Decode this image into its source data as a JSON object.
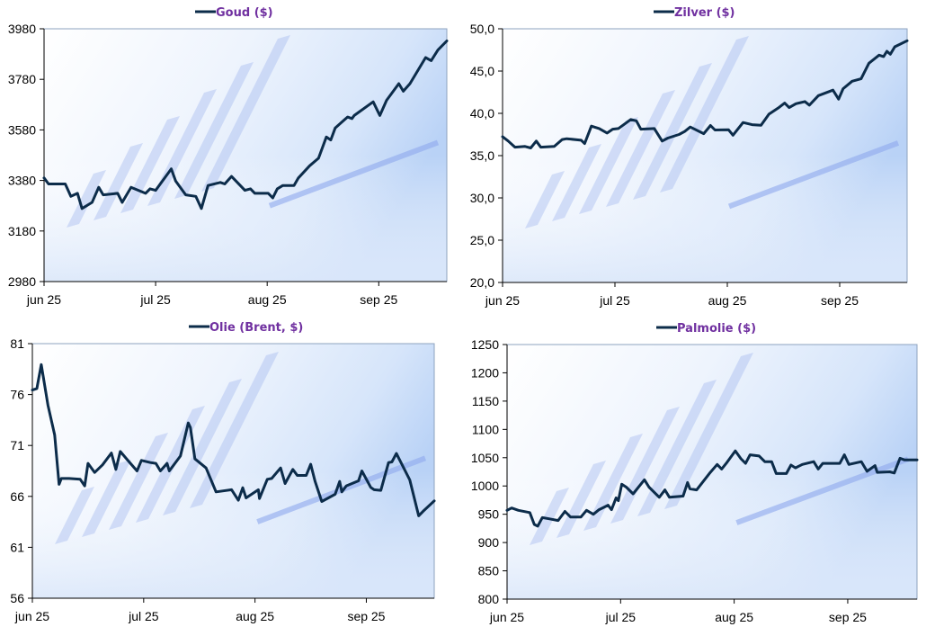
{
  "chart_data": [
    {
      "type": "line",
      "title": "Goud ($)",
      "x_unit": "months since 1 jun 2025",
      "xlim": [
        0,
        3.61
      ],
      "xticks": [
        {
          "v": 0,
          "label": "jun 25"
        },
        {
          "v": 1,
          "label": "jul 25"
        },
        {
          "v": 2,
          "label": "aug 25"
        },
        {
          "v": 3,
          "label": "sep 25"
        }
      ],
      "ylim": [
        2980,
        3980
      ],
      "yticks": [
        "2980",
        "3180",
        "3380",
        "3580",
        "3780",
        "3980"
      ],
      "series": [
        {
          "name": "Goud ($)",
          "color": "#0C2C4A",
          "x": [
            0,
            0.04,
            0.19,
            0.24,
            0.3,
            0.34,
            0.43,
            0.49,
            0.53,
            0.66,
            0.7,
            0.78,
            0.91,
            0.95,
            1.0,
            1.14,
            1.18,
            1.27,
            1.36,
            1.41,
            1.47,
            1.58,
            1.62,
            1.68,
            1.8,
            1.85,
            1.89,
            2.01,
            2.05,
            2.09,
            2.14,
            2.24,
            2.28,
            2.38,
            2.46,
            2.53,
            2.57,
            2.61,
            2.72,
            2.76,
            2.78,
            2.95,
            3.01,
            3.07,
            3.18,
            3.22,
            3.28,
            3.42,
            3.47,
            3.53,
            3.61
          ],
          "y": [
            3390,
            3366,
            3366,
            3317,
            3329,
            3269,
            3293,
            3353,
            3323,
            3329,
            3293,
            3353,
            3329,
            3347,
            3341,
            3426,
            3378,
            3323,
            3317,
            3269,
            3360,
            3372,
            3366,
            3396,
            3341,
            3347,
            3329,
            3329,
            3311,
            3347,
            3360,
            3360,
            3390,
            3438,
            3468,
            3552,
            3540,
            3588,
            3631,
            3625,
            3637,
            3691,
            3637,
            3697,
            3763,
            3733,
            3763,
            3866,
            3854,
            3896,
            3932
          ]
        }
      ]
    },
    {
      "type": "line",
      "title": "Zilver ($)",
      "x_unit": "months since 1 jun 2025",
      "xlim": [
        0,
        3.6
      ],
      "xticks": [
        {
          "v": 0,
          "label": "jun 25"
        },
        {
          "v": 1,
          "label": "jul 25"
        },
        {
          "v": 2,
          "label": "aug 25"
        },
        {
          "v": 3,
          "label": "sep 25"
        }
      ],
      "ylim": [
        20,
        50
      ],
      "yticks": [
        "20,0",
        "25,0",
        "30,0",
        "35,0",
        "40,0",
        "45,0",
        "50,0"
      ],
      "series": [
        {
          "name": "Zilver ($)",
          "color": "#0C2C4A",
          "x": [
            0,
            0.05,
            0.11,
            0.2,
            0.25,
            0.3,
            0.34,
            0.46,
            0.53,
            0.57,
            0.7,
            0.73,
            0.79,
            0.86,
            0.93,
            0.98,
            1.03,
            1.14,
            1.19,
            1.23,
            1.35,
            1.42,
            1.47,
            1.57,
            1.62,
            1.67,
            1.79,
            1.85,
            1.89,
            2.01,
            2.05,
            2.14,
            2.22,
            2.3,
            2.37,
            2.45,
            2.51,
            2.55,
            2.61,
            2.69,
            2.73,
            2.81,
            2.94,
            2.99,
            3.03,
            3.11,
            3.19,
            3.26,
            3.35,
            3.39,
            3.42,
            3.45,
            3.49,
            3.6
          ],
          "y": [
            37.25,
            36.72,
            36.0,
            36.08,
            35.9,
            36.72,
            36.0,
            36.08,
            36.9,
            37.0,
            36.82,
            36.43,
            38.49,
            38.2,
            37.67,
            38.13,
            38.2,
            39.27,
            39.12,
            38.13,
            38.2,
            36.72,
            37.07,
            37.5,
            37.85,
            38.38,
            37.6,
            38.56,
            38.03,
            38.06,
            37.42,
            38.91,
            38.66,
            38.59,
            39.9,
            40.61,
            41.21,
            40.68,
            41.14,
            41.39,
            40.97,
            42.1,
            42.74,
            41.68,
            42.92,
            43.8,
            44.08,
            45.93,
            46.88,
            46.71,
            47.34,
            46.99,
            47.87,
            48.58
          ]
        }
      ]
    },
    {
      "type": "line",
      "title": "Olie (Brent, $)",
      "x_unit": "months since 1 jun 2025",
      "xlim": [
        0,
        3.61
      ],
      "xticks": [
        {
          "v": 0,
          "label": "jun 25"
        },
        {
          "v": 1,
          "label": "jul 25"
        },
        {
          "v": 2,
          "label": "aug 25"
        },
        {
          "v": 3,
          "label": "sep 25"
        }
      ],
      "ylim": [
        56,
        81
      ],
      "yticks": [
        "56",
        "61",
        "66",
        "71",
        "76",
        "81"
      ],
      "series": [
        {
          "name": "Olie (Brent, $)",
          "color": "#0C2C4A",
          "x": [
            0,
            0.04,
            0.08,
            0.14,
            0.2,
            0.24,
            0.26,
            0.33,
            0.43,
            0.47,
            0.5,
            0.56,
            0.63,
            0.71,
            0.75,
            0.79,
            0.87,
            0.94,
            0.98,
            1.06,
            1.11,
            1.15,
            1.21,
            1.23,
            1.33,
            1.4,
            1.42,
            1.46,
            1.56,
            1.65,
            1.79,
            1.85,
            1.89,
            1.92,
            2.03,
            2.04,
            2.11,
            2.15,
            2.23,
            2.27,
            2.34,
            2.38,
            2.46,
            2.5,
            2.54,
            2.6,
            2.72,
            2.76,
            2.78,
            2.82,
            2.93,
            2.96,
            3.04,
            3.07,
            3.13,
            3.2,
            3.23,
            3.27,
            3.39,
            3.47,
            3.51,
            3.61
          ],
          "y": [
            76.44,
            76.59,
            78.94,
            74.97,
            72.03,
            67.18,
            67.76,
            67.76,
            67.68,
            67.03,
            69.24,
            68.35,
            69.09,
            70.26,
            68.65,
            70.41,
            69.38,
            68.5,
            69.53,
            69.32,
            69.24,
            68.5,
            69.24,
            68.5,
            69.97,
            73.21,
            72.76,
            69.68,
            68.79,
            66.44,
            66.65,
            65.62,
            66.85,
            65.85,
            66.65,
            65.79,
            67.68,
            67.76,
            68.79,
            67.26,
            68.65,
            68.06,
            68.06,
            69.15,
            67.47,
            65.5,
            66.21,
            67.47,
            66.44,
            67.03,
            67.53,
            68.5,
            66.88,
            66.65,
            66.59,
            69.32,
            69.38,
            70.21,
            67.62,
            64.09,
            64.53,
            65.56
          ]
        }
      ]
    },
    {
      "type": "line",
      "title": "Palmolie ($)",
      "x_unit": "months since 1 jun 2025",
      "xlim": [
        0,
        3.61
      ],
      "xticks": [
        {
          "v": 0,
          "label": "jun 25"
        },
        {
          "v": 1,
          "label": "jul 25"
        },
        {
          "v": 2,
          "label": "aug 25"
        },
        {
          "v": 3,
          "label": "sep 25"
        }
      ],
      "ylim": [
        800,
        1250
      ],
      "yticks": [
        "800",
        "850",
        "900",
        "950",
        "1000",
        "1050",
        "1100",
        "1150",
        "1200",
        "1250"
      ],
      "series": [
        {
          "name": "Palmolie ($)",
          "color": "#0C2C4A",
          "x": [
            0,
            0.04,
            0.1,
            0.2,
            0.24,
            0.27,
            0.31,
            0.37,
            0.45,
            0.51,
            0.56,
            0.65,
            0.7,
            0.76,
            0.81,
            0.89,
            0.92,
            0.96,
            0.98,
            1.01,
            1.05,
            1.11,
            1.21,
            1.25,
            1.34,
            1.39,
            1.43,
            1.55,
            1.59,
            1.61,
            1.67,
            1.79,
            1.85,
            1.89,
            1.93,
            2.01,
            2.06,
            2.1,
            2.14,
            2.22,
            2.27,
            2.33,
            2.37,
            2.46,
            2.5,
            2.54,
            2.6,
            2.7,
            2.74,
            2.78,
            2.93,
            2.97,
            3.01,
            3.12,
            3.17,
            3.24,
            3.26,
            3.37,
            3.41,
            3.46,
            3.5,
            3.61
          ],
          "y": [
            957,
            961,
            957,
            953,
            932,
            929,
            944,
            942,
            939,
            955,
            945,
            945,
            957,
            950,
            958,
            966,
            958,
            979,
            974,
            1003,
            998,
            986,
            1011,
            998,
            980,
            993,
            980,
            982,
            1006,
            995,
            993,
            1024,
            1038,
            1030,
            1040,
            1062,
            1048,
            1040,
            1055,
            1053,
            1043,
            1043,
            1022,
            1022,
            1037,
            1032,
            1038,
            1043,
            1030,
            1040,
            1040,
            1055,
            1038,
            1043,
            1026,
            1036,
            1024,
            1025,
            1023,
            1049,
            1046,
            1046
          ]
        }
      ]
    }
  ]
}
